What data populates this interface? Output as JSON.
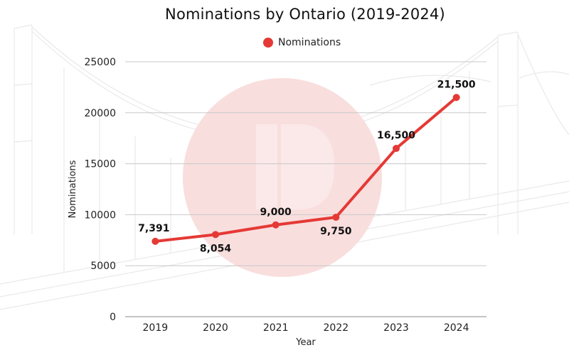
{
  "chart_data": {
    "type": "line",
    "title": "Nominations by Ontario (2019-2024)",
    "xlabel": "Year",
    "ylabel": "Nominations",
    "categories": [
      "2019",
      "2020",
      "2021",
      "2022",
      "2023",
      "2024"
    ],
    "series": [
      {
        "name": "Nominations",
        "values": [
          7391,
          8054,
          9000,
          9750,
          16500,
          21500
        ],
        "labels": [
          "7,391",
          "8,054",
          "9,000",
          "9,750",
          "16,500",
          "21,500"
        ]
      }
    ],
    "ylim": [
      0,
      25000
    ],
    "yticks": [
      0,
      5000,
      10000,
      15000,
      20000,
      25000
    ],
    "grid": true,
    "legend": "top-center",
    "colors": {
      "series": "#e53935",
      "grid": "#c8c8c8",
      "watermark": "#f8d7d7"
    }
  }
}
